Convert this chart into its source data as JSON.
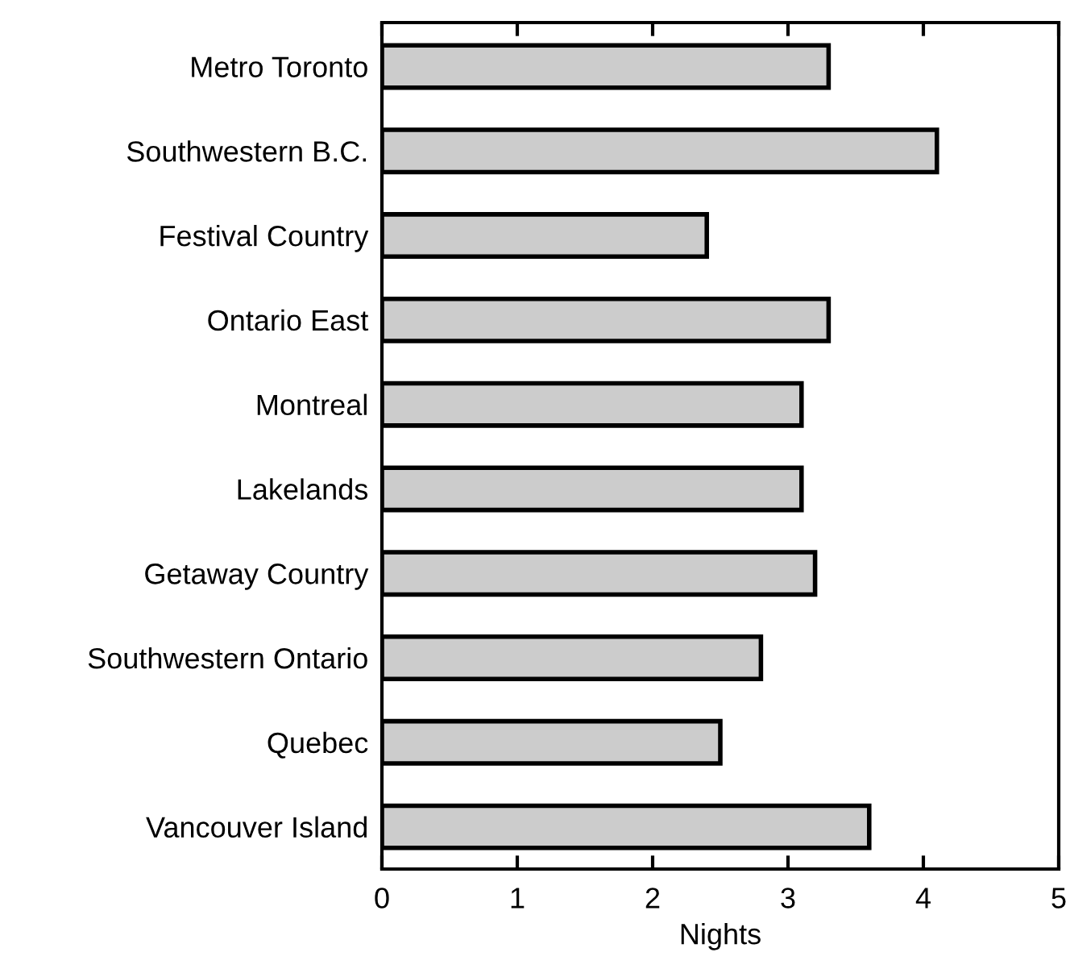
{
  "chart_data": {
    "type": "bar",
    "orientation": "horizontal",
    "xlabel": "Nights",
    "categories": [
      "Metro Toronto",
      "Southwestern B.C.",
      "Festival Country",
      "Ontario East",
      "Montreal",
      "Lakelands",
      "Getaway Country",
      "Southwestern Ontario",
      "Quebec",
      "Vancouver Island"
    ],
    "values": [
      3.3,
      4.1,
      2.4,
      3.3,
      3.1,
      3.1,
      3.2,
      2.8,
      2.5,
      3.6
    ],
    "color": "#cccccc",
    "xlim": [
      0,
      5
    ],
    "xticks": [
      0,
      1,
      2,
      3,
      4,
      5
    ],
    "grid": false,
    "legend": false
  }
}
